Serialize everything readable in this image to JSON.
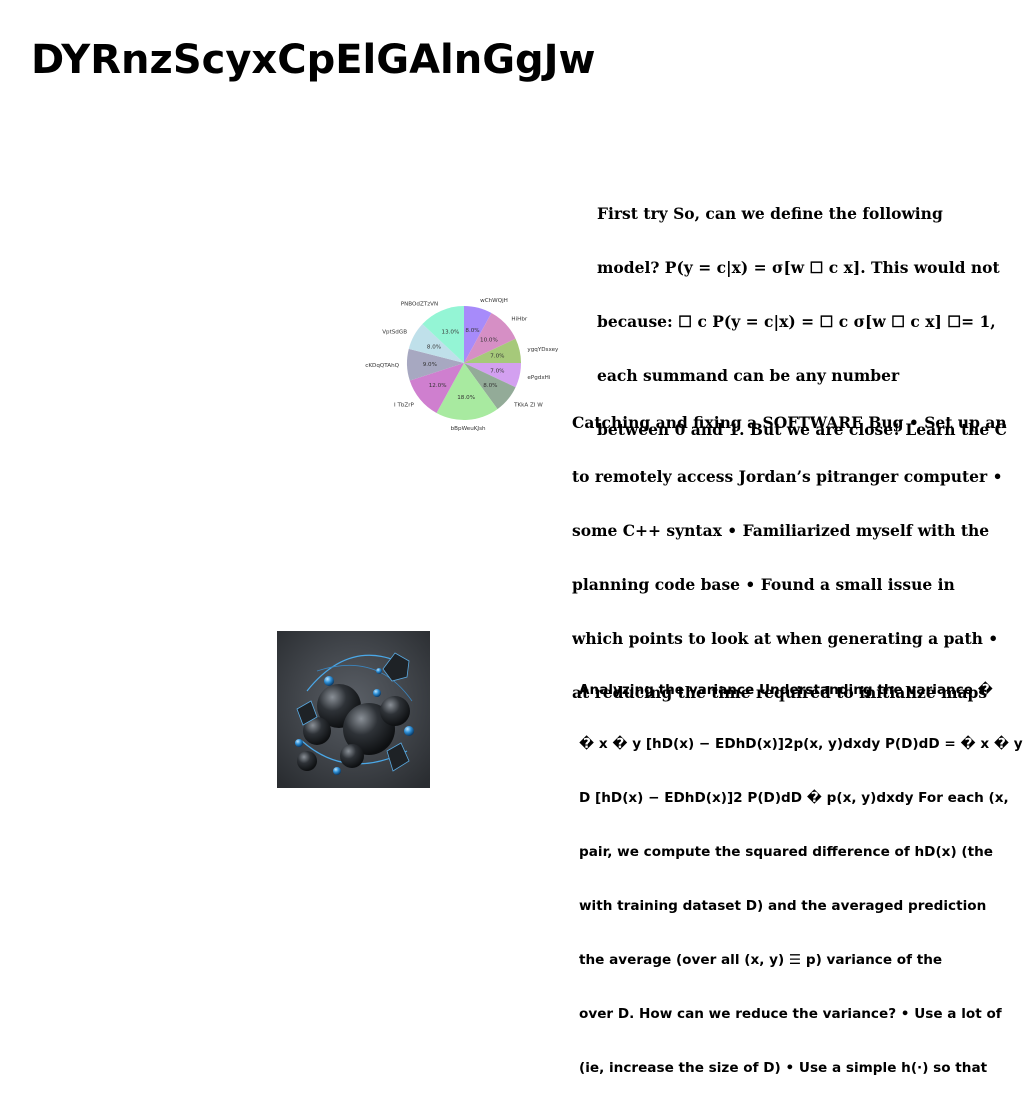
{
  "title": "DYRnzScyxCpElGAlnGgJw",
  "text_blocks": [
    {
      "lines": [
        "First try So, can we define the following",
        "model? P(y = c|x) = σ[w ☐ c x]. This would not",
        "because: ☐ c P(y = c|x) = ☐ c σ[w ☐ c x] ☐= 1,",
        "each summand can be any number",
        "between 0 and 1. But we are close! Learn the C"
      ]
    },
    {
      "lines": [
        "Catching and fixing a SOFTWARE Bug • Set up an",
        "to remotely access Jordan’s pitranger computer •",
        "some C++ syntax • Familiarized myself with the",
        "planning code base • Found a small issue in",
        "which points to look at when generating a path •",
        "at reducing the time required to initialize maps"
      ]
    },
    {
      "lines": [
        "Analyzing the variance Understanding the variance �",
        "� x � y [hD(x) − EDhD(x)]2p(x, y)dxdy P(D)dD = � x � y",
        "D [hD(x) − EDhD(x)]2 P(D)dD � p(x, y)dxdy For each (x,",
        "pair, we compute the squared difference of hD(x) (the",
        "with training dataset D) and the averaged prediction",
        "the average (over all (x, y) ☰ p) variance of the",
        "over D. How can we reduce the variance? • Use a lot of",
        "(ie, increase the size of D) • Use a simple h(·) so that"
      ]
    }
  ],
  "chart_data": {
    "type": "pie",
    "start_angle_deg": 90,
    "direction": "clockwise",
    "slices": [
      {
        "label": "wChWQjH",
        "value": 8.0,
        "pct": "8.0%",
        "color": "#a78bfa"
      },
      {
        "label": "HiHbr",
        "value": 10.0,
        "pct": "10.0%",
        "color": "#d68fc5"
      },
      {
        "label": "ygqYDsxey",
        "value": 7.0,
        "pct": "7.0%",
        "color": "#a6c97a"
      },
      {
        "label": "ePgdxHi",
        "value": 7.0,
        "pct": "7.0%",
        "color": "#d3a0f0"
      },
      {
        "label": "TKkA ZI W",
        "value": 8.0,
        "pct": "8.0%",
        "color": "#93ab98"
      },
      {
        "label": "bBpWeuKJsh",
        "value": 18.0,
        "pct": "18.0%",
        "color": "#a8eaa0"
      },
      {
        "label": "I TbZrP",
        "value": 12.0,
        "pct": "12.0%",
        "color": "#cf7fcf"
      },
      {
        "label": "cKDqQTAhQ",
        "value": 9.0,
        "pct": "9.0%",
        "color": "#a7a8c1"
      },
      {
        "label": "VptSdGB",
        "value": 8.0,
        "pct": "8.0%",
        "color": "#bfe0ea"
      },
      {
        "label": "PNBOdZTzVN",
        "value": 13.0,
        "pct": "13.0%",
        "color": "#94f5d5"
      }
    ]
  },
  "image": {
    "description_icon": "dark-spheres-render"
  }
}
